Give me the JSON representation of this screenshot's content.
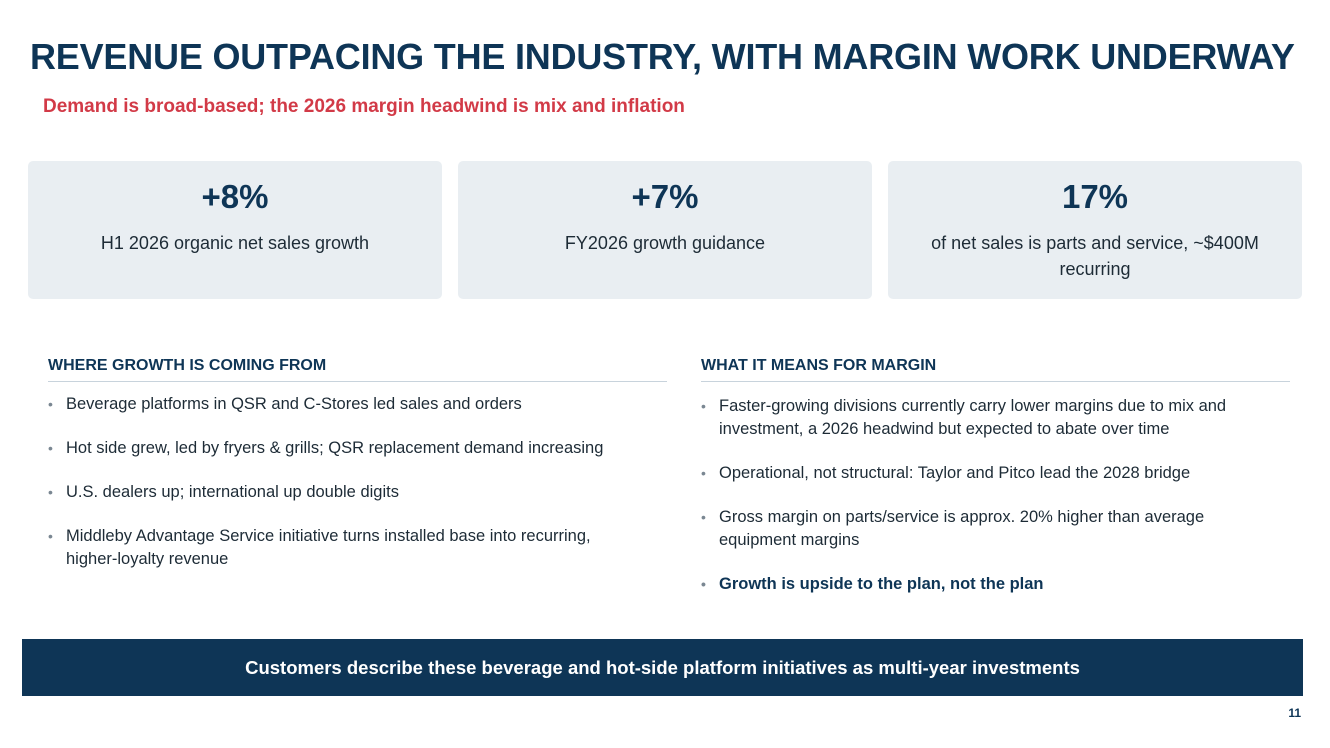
{
  "title": "REVENUE OUTPACING THE INDUSTRY, WITH MARGIN WORK UNDERWAY",
  "subtitle": "Demand is broad-based; the 2026 margin headwind is mix and inflation",
  "kpis": [
    {
      "value": "+8%",
      "label": "H1 2026 organic net sales growth"
    },
    {
      "value": "+7%",
      "label": "FY2026 growth guidance"
    },
    {
      "value": "17%",
      "label": "of net sales is parts and service, ~$400M recurring"
    }
  ],
  "growth": {
    "heading": "WHERE GROWTH IS COMING FROM",
    "items": [
      "Beverage platforms in QSR and C-Stores led sales and orders",
      "Hot side grew, led by fryers & grills; QSR replacement demand increasing",
      "U.S. dealers up; international up double digits",
      "Middleby Advantage Service initiative turns installed base into recurring, higher-loyalty revenue"
    ]
  },
  "margin": {
    "heading": "WHAT IT MEANS FOR MARGIN",
    "items": [
      "Faster-growing divisions currently carry lower margins due to mix and investment, a 2026 headwind but expected to abate over time",
      "Operational, not structural: Taylor and Pitco lead the 2028 bridge",
      "Gross margin on parts/service is approx. 20% higher than average equipment margins",
      "Growth is upside to the plan, not the plan"
    ]
  },
  "banner": "Customers describe these beverage and hot-side platform initiatives as multi-year investments",
  "page_number": "11",
  "colors": {
    "navy": "#0e3556",
    "red": "#d23a47",
    "card": "#e9eef2"
  }
}
